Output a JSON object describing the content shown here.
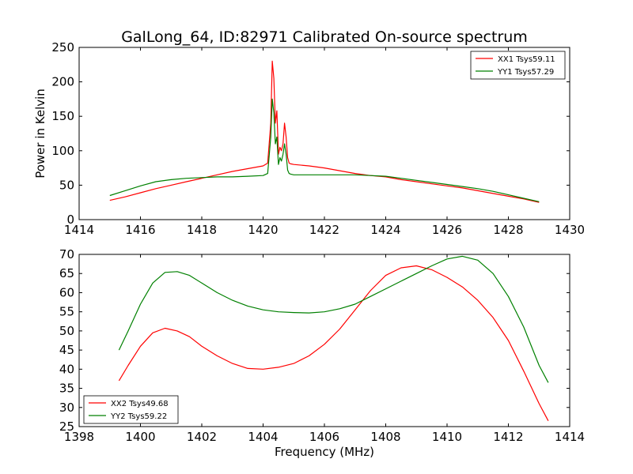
{
  "title": "GalLong_64, ID:82971 Calibrated On-source spectrum",
  "chart_data": [
    {
      "type": "line",
      "xlim": [
        1414,
        1430
      ],
      "ylim": [
        0,
        250
      ],
      "xticks": [
        1414,
        1416,
        1418,
        1420,
        1422,
        1424,
        1426,
        1428,
        1430
      ],
      "yticks": [
        0,
        50,
        100,
        150,
        200,
        250
      ],
      "xlabel": "",
      "ylabel": "Power in Kelvin",
      "grid": false,
      "legend": "top-right",
      "series": [
        {
          "name": "XX1 Tsys59.11",
          "color": "#ff0000",
          "x": [
            1415.0,
            1415.5,
            1416.0,
            1416.5,
            1417.0,
            1417.5,
            1418.0,
            1418.5,
            1419.0,
            1419.5,
            1420.0,
            1420.15,
            1420.25,
            1420.3,
            1420.35,
            1420.4,
            1420.45,
            1420.5,
            1420.55,
            1420.6,
            1420.65,
            1420.7,
            1420.75,
            1420.8,
            1420.85,
            1420.9,
            1421.0,
            1421.5,
            1422.0,
            1422.5,
            1423.0,
            1423.5,
            1424.0,
            1424.5,
            1425.0,
            1425.5,
            1426.0,
            1426.5,
            1427.0,
            1427.5,
            1428.0,
            1428.5,
            1429.0
          ],
          "values": [
            28,
            33,
            39,
            45,
            50,
            55,
            60,
            65,
            70,
            74,
            78,
            82,
            140,
            230,
            205,
            140,
            158,
            95,
            105,
            100,
            110,
            140,
            120,
            90,
            82,
            81,
            80,
            78,
            75,
            71,
            67,
            64,
            62,
            58,
            55,
            52,
            49,
            46,
            42,
            38,
            34,
            30,
            25
          ]
        },
        {
          "name": "YY1 Tsys57.29",
          "color": "#008000",
          "x": [
            1415.0,
            1415.5,
            1416.0,
            1416.5,
            1417.0,
            1417.5,
            1418.0,
            1418.5,
            1419.0,
            1419.5,
            1420.0,
            1420.15,
            1420.25,
            1420.3,
            1420.35,
            1420.4,
            1420.45,
            1420.5,
            1420.55,
            1420.6,
            1420.65,
            1420.7,
            1420.75,
            1420.8,
            1420.85,
            1420.9,
            1421.0,
            1421.5,
            1422.0,
            1422.5,
            1423.0,
            1423.5,
            1424.0,
            1424.5,
            1425.0,
            1425.5,
            1426.0,
            1426.5,
            1427.0,
            1427.5,
            1428.0,
            1428.5,
            1429.0
          ],
          "values": [
            35,
            42,
            49,
            55,
            58,
            60,
            61,
            62,
            62,
            63,
            64,
            67,
            120,
            175,
            155,
            110,
            120,
            80,
            90,
            85,
            95,
            110,
            95,
            72,
            67,
            66,
            65,
            65,
            65,
            65,
            65,
            64,
            63,
            60,
            57,
            54,
            51,
            48,
            45,
            41,
            36,
            31,
            26
          ]
        }
      ]
    },
    {
      "type": "line",
      "xlim": [
        1398,
        1414
      ],
      "ylim": [
        25,
        70
      ],
      "xticks": [
        1398,
        1400,
        1402,
        1404,
        1406,
        1408,
        1410,
        1412,
        1414
      ],
      "yticks": [
        25,
        30,
        35,
        40,
        45,
        50,
        55,
        60,
        65,
        70
      ],
      "xlabel": "Frequency (MHz)",
      "ylabel": "",
      "grid": false,
      "legend": "bottom-left",
      "series": [
        {
          "name": "XX2 Tsys49.68",
          "color": "#ff0000",
          "x": [
            1399.3,
            1399.6,
            1400.0,
            1400.4,
            1400.8,
            1401.2,
            1401.6,
            1402.0,
            1402.5,
            1403.0,
            1403.5,
            1404.0,
            1404.5,
            1405.0,
            1405.5,
            1406.0,
            1406.5,
            1407.0,
            1407.5,
            1408.0,
            1408.5,
            1409.0,
            1409.5,
            1410.0,
            1410.5,
            1411.0,
            1411.5,
            1412.0,
            1412.5,
            1413.0,
            1413.3
          ],
          "values": [
            37,
            41,
            46,
            49.5,
            50.7,
            50,
            48.5,
            46,
            43.5,
            41.5,
            40.2,
            40,
            40.5,
            41.5,
            43.5,
            46.5,
            50.5,
            55.5,
            60.5,
            64.5,
            66.5,
            67,
            66,
            64,
            61.5,
            58,
            53.5,
            47.5,
            39.5,
            31,
            26.5
          ]
        },
        {
          "name": "YY2 Tsys59.22",
          "color": "#008000",
          "x": [
            1399.3,
            1399.6,
            1400.0,
            1400.4,
            1400.8,
            1401.2,
            1401.6,
            1402.0,
            1402.5,
            1403.0,
            1403.5,
            1404.0,
            1404.5,
            1405.0,
            1405.5,
            1406.0,
            1406.5,
            1407.0,
            1407.5,
            1408.0,
            1408.5,
            1409.0,
            1409.5,
            1410.0,
            1410.5,
            1411.0,
            1411.5,
            1412.0,
            1412.5,
            1413.0,
            1413.3
          ],
          "values": [
            45,
            50,
            57,
            62.5,
            65.3,
            65.5,
            64.5,
            62.5,
            60,
            58,
            56.5,
            55.5,
            55,
            54.8,
            54.7,
            55,
            55.8,
            57,
            59,
            61,
            63,
            65,
            67,
            68.8,
            69.5,
            68.5,
            65,
            59,
            51,
            41,
            36.5
          ]
        }
      ]
    }
  ]
}
